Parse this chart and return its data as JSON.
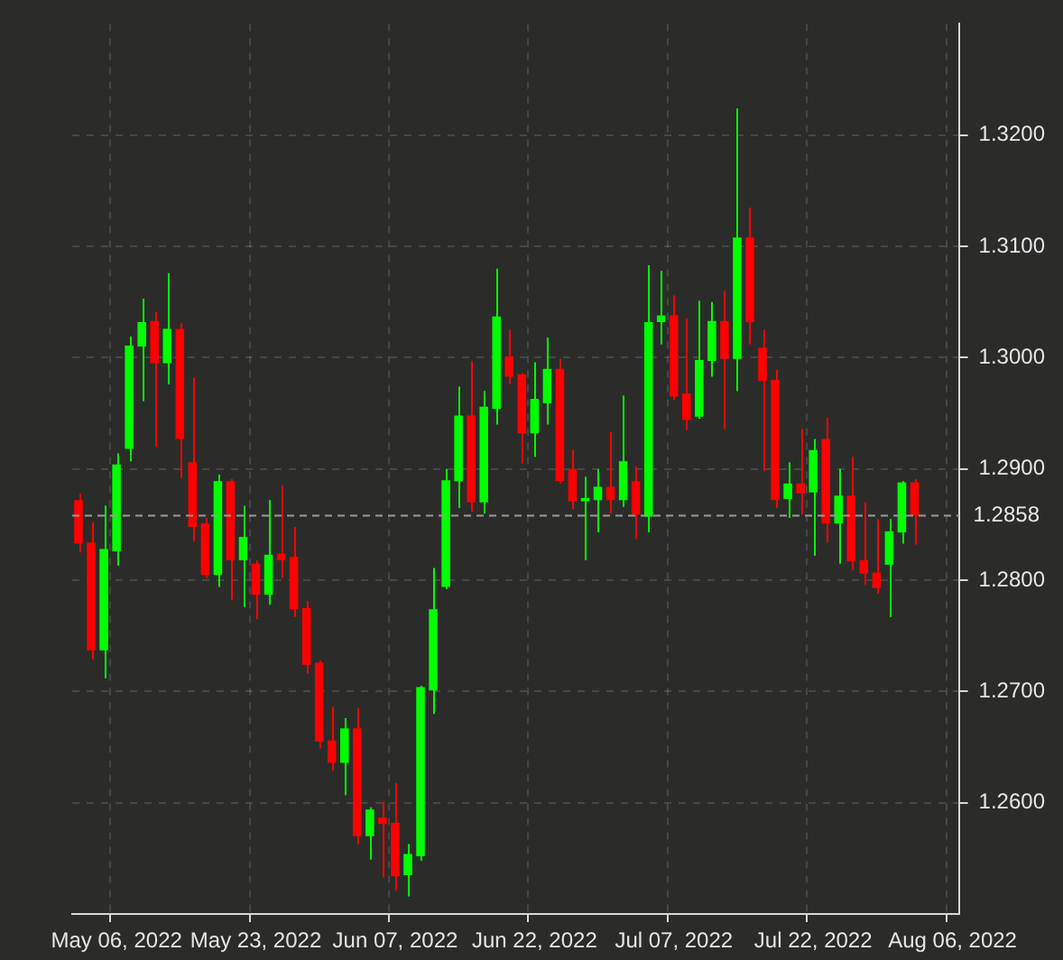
{
  "chart_data": {
    "type": "candlestick",
    "categories": [
      null,
      null,
      null,
      "May 06, 2022",
      null,
      null,
      null,
      null,
      null,
      null,
      null,
      null,
      null,
      null,
      "May 23, 2022",
      null,
      null,
      null,
      null,
      null,
      null,
      null,
      null,
      null,
      null,
      "Jun 07, 2022",
      null,
      null,
      null,
      null,
      null,
      null,
      null,
      null,
      null,
      null,
      "Jun 22, 2022",
      null,
      null,
      null,
      null,
      null,
      null,
      null,
      null,
      null,
      null,
      "Jul 07, 2022",
      null,
      null,
      null,
      null,
      null,
      null,
      null,
      null,
      null,
      null,
      "Jul 22, 2022",
      null,
      null,
      null,
      null,
      null,
      null,
      null,
      null,
      null,
      null,
      "Aug 06, 2022"
    ],
    "ohlc": [
      [
        1.2872,
        1.2878,
        1.2825,
        1.2833
      ],
      [
        1.2834,
        1.2852,
        1.2729,
        1.2737
      ],
      [
        1.2737,
        1.2867,
        1.2712,
        1.2828
      ],
      [
        1.2826,
        1.2914,
        1.2813,
        1.2904
      ],
      [
        1.2918,
        1.3019,
        1.2907,
        1.3011
      ],
      [
        1.301,
        1.3053,
        1.2961,
        1.3032
      ],
      [
        1.3033,
        1.3041,
        1.292,
        1.2995
      ],
      [
        1.2995,
        1.3076,
        1.2976,
        1.3026
      ],
      [
        1.3026,
        1.3031,
        1.2892,
        1.2927
      ],
      [
        1.2906,
        1.2982,
        1.2835,
        1.2848
      ],
      [
        1.2851,
        1.2856,
        1.2802,
        1.2805
      ],
      [
        1.2805,
        1.2895,
        1.2794,
        1.2889
      ],
      [
        1.2889,
        1.2891,
        1.2782,
        1.2818
      ],
      [
        1.2818,
        1.2867,
        1.2776,
        1.2839
      ],
      [
        1.2815,
        1.2818,
        1.2765,
        1.2787
      ],
      [
        1.2787,
        1.2872,
        1.2778,
        1.2823
      ],
      [
        1.2824,
        1.2885,
        1.2802,
        1.2818
      ],
      [
        1.2821,
        1.2848,
        1.2767,
        1.2774
      ],
      [
        1.2775,
        1.2781,
        1.2716,
        1.2724
      ],
      [
        1.2726,
        1.2728,
        1.2649,
        1.2655
      ],
      [
        1.2656,
        1.2686,
        1.2629,
        1.2636
      ],
      [
        1.2636,
        1.2676,
        1.2607,
        1.2667
      ],
      [
        1.2667,
        1.2685,
        1.2563,
        1.257
      ],
      [
        1.257,
        1.2596,
        1.2549,
        1.2594
      ],
      [
        1.2587,
        1.2601,
        1.2533,
        1.2581
      ],
      [
        1.2582,
        1.2618,
        1.2521,
        1.2534
      ],
      [
        1.2535,
        1.2563,
        1.2516,
        1.2554
      ],
      [
        1.2552,
        1.2705,
        1.2548,
        1.2704
      ],
      [
        1.2701,
        1.2811,
        1.268,
        1.2774
      ],
      [
        1.2794,
        1.29,
        1.2792,
        1.289
      ],
      [
        1.2889,
        1.2974,
        1.2865,
        1.2948
      ],
      [
        1.2948,
        1.2997,
        1.2862,
        1.287
      ],
      [
        1.287,
        1.297,
        1.286,
        1.2956
      ],
      [
        1.2954,
        1.308,
        1.294,
        1.3037
      ],
      [
        1.3001,
        1.3025,
        1.2976,
        1.2983
      ],
      [
        1.2985,
        1.2986,
        1.2905,
        1.2932
      ],
      [
        1.2932,
        1.2996,
        1.2911,
        1.2963
      ],
      [
        1.2959,
        1.3018,
        1.294,
        1.299
      ],
      [
        1.299,
        1.2999,
        1.2887,
        1.2889
      ],
      [
        1.29,
        1.2917,
        1.2864,
        1.2871
      ],
      [
        1.2871,
        1.2893,
        1.2818,
        1.2874
      ],
      [
        1.2872,
        1.29,
        1.2843,
        1.2884
      ],
      [
        1.2884,
        1.2933,
        1.286,
        1.2872
      ],
      [
        1.2872,
        1.2966,
        1.2866,
        1.2907
      ],
      [
        1.2889,
        1.2902,
        1.2837,
        1.2859
      ],
      [
        1.2857,
        1.3083,
        1.2843,
        1.3032
      ],
      [
        1.3032,
        1.3078,
        1.3012,
        1.3038
      ],
      [
        1.3038,
        1.3056,
        1.2962,
        1.2965
      ],
      [
        1.2968,
        1.3035,
        1.2935,
        1.2944
      ],
      [
        1.2947,
        1.3051,
        1.2945,
        1.2998
      ],
      [
        1.2997,
        1.305,
        1.2983,
        1.3033
      ],
      [
        1.3033,
        1.306,
        1.2936,
        1.2999
      ],
      [
        1.2999,
        1.3224,
        1.297,
        1.3108
      ],
      [
        1.3108,
        1.3135,
        1.3012,
        1.3032
      ],
      [
        1.3009,
        1.3025,
        1.2898,
        1.2979
      ],
      [
        1.298,
        1.2989,
        1.2865,
        1.2872
      ],
      [
        1.2873,
        1.2906,
        1.2856,
        1.2887
      ],
      [
        1.2887,
        1.2936,
        1.2859,
        1.2878
      ],
      [
        1.2879,
        1.2927,
        1.2822,
        1.2917
      ],
      [
        1.2927,
        1.2946,
        1.2834,
        1.2851
      ],
      [
        1.2851,
        1.29,
        1.2815,
        1.2876
      ],
      [
        1.2876,
        1.2911,
        1.2809,
        1.2817
      ],
      [
        1.2818,
        1.287,
        1.2796,
        1.2806
      ],
      [
        1.2807,
        1.2855,
        1.2788,
        1.2793
      ],
      [
        1.2814,
        1.2855,
        1.2767,
        1.2844
      ],
      [
        1.2843,
        1.2889,
        1.2833,
        1.2888
      ],
      [
        1.2888,
        1.2891,
        1.2832,
        1.2858
      ],
      null,
      null,
      null
    ],
    "colors": [
      "#ff0000",
      "#ff0000",
      "#00ff00",
      "#00ff00",
      "#00ff00",
      "#00ff00",
      "#ff0000",
      "#00ff00",
      "#ff0000",
      "#ff0000",
      "#ff0000",
      "#00ff00",
      "#ff0000",
      "#00ff00",
      "#ff0000",
      "#00ff00",
      "#ff0000",
      "#ff0000",
      "#ff0000",
      "#ff0000",
      "#ff0000",
      "#00ff00",
      "#ff0000",
      "#00ff00",
      "#ff0000",
      "#ff0000",
      "#00ff00",
      "#00ff00",
      "#00ff00",
      "#00ff00",
      "#00ff00",
      "#ff0000",
      "#00ff00",
      "#00ff00",
      "#ff0000",
      "#ff0000",
      "#00ff00",
      "#00ff00",
      "#ff0000",
      "#ff0000",
      "#00ff00",
      "#00ff00",
      "#ff0000",
      "#00ff00",
      "#ff0000",
      "#00ff00",
      "#00ff00",
      "#ff0000",
      "#ff0000",
      "#00ff00",
      "#00ff00",
      "#ff0000",
      "#00ff00",
      "#ff0000",
      "#ff0000",
      "#ff0000",
      "#00ff00",
      "#ff0000",
      "#00ff00",
      "#ff0000",
      "#00ff00",
      "#ff0000",
      "#ff0000",
      "#ff0000",
      "#00ff00",
      "#00ff00",
      "#ff0000",
      null,
      null,
      null
    ],
    "ylim": [
      1.25,
      1.33
    ],
    "yticks": [
      {
        "value": 1.26,
        "label": "1.2600"
      },
      {
        "value": 1.27,
        "label": "1.2700"
      },
      {
        "value": 1.28,
        "label": "1.2800"
      },
      {
        "value": 1.29,
        "label": "1.2900"
      },
      {
        "value": 1.3,
        "label": "1.3000"
      },
      {
        "value": 1.31,
        "label": "1.3100"
      },
      {
        "value": 1.32,
        "label": "1.3200"
      }
    ],
    "ref_lines": [
      {
        "axis": "y",
        "value": 1.2858,
        "label": "1.2858",
        "color": "#9a9a9a",
        "line_style": "dashed"
      }
    ],
    "grid": true,
    "legend": false
  }
}
